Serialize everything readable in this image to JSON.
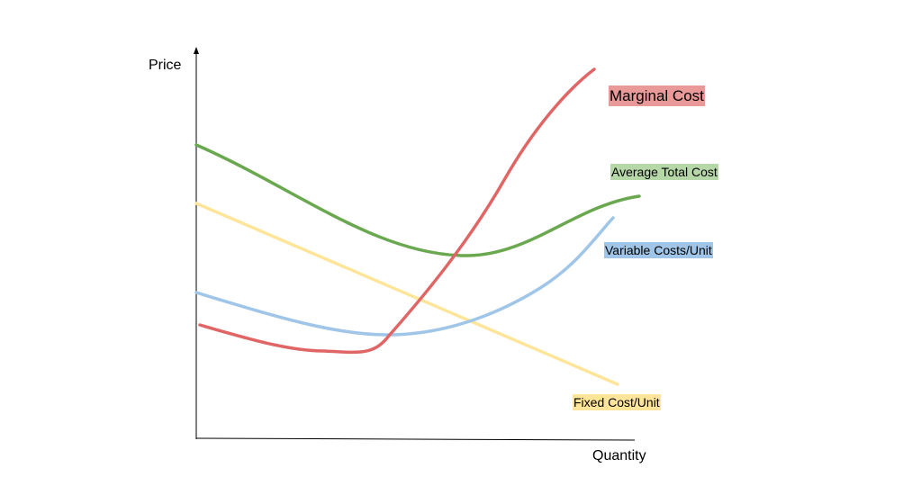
{
  "axes": {
    "y_label": "Price",
    "x_label": "Quantity"
  },
  "curves": [
    {
      "id": "marginal-cost",
      "label": "Marginal Cost",
      "color": "#e06666",
      "tag_color": "#ea9999"
    },
    {
      "id": "average-total-cost",
      "label": "Average Total Cost",
      "color": "#6aa84f",
      "tag_color": "#b6d7a8"
    },
    {
      "id": "variable-costs-unit",
      "label": "Variable Costs/Unit",
      "color": "#9fc5e8",
      "tag_color": "#9fc5e8"
    },
    {
      "id": "fixed-cost-unit",
      "label": "Fixed Cost/Unit",
      "color": "#ffe599",
      "tag_color": "#ffe599"
    }
  ]
}
